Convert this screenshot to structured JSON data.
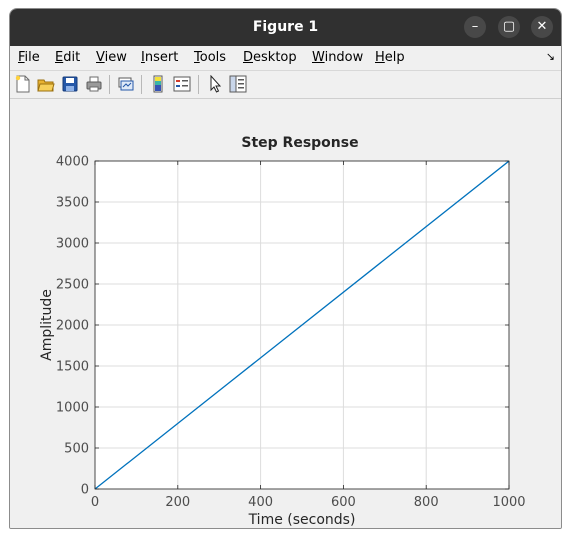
{
  "window": {
    "title": "Figure 1",
    "minimize_glyph": "–",
    "maximize_glyph": "▢",
    "close_glyph": "✕"
  },
  "menu": {
    "items": [
      {
        "label": "File",
        "mnemonic": "F",
        "rest": "ile"
      },
      {
        "label": "Edit",
        "mnemonic": "E",
        "rest": "dit"
      },
      {
        "label": "View",
        "mnemonic": "V",
        "rest": "iew"
      },
      {
        "label": "Insert",
        "mnemonic": "I",
        "rest": "nsert"
      },
      {
        "label": "Tools",
        "mnemonic": "T",
        "rest": "ools"
      },
      {
        "label": "Desktop",
        "mnemonic": "D",
        "rest": "esktop"
      },
      {
        "label": "Window",
        "mnemonic": "W",
        "rest": "indow"
      },
      {
        "label": "Help",
        "mnemonic": "H",
        "rest": "elp"
      }
    ],
    "dock_glyph": "↘"
  },
  "toolbar": {
    "icons": [
      "new-figure-icon",
      "open-file-icon",
      "save-icon",
      "print-icon",
      "link-plot-icon",
      "insert-colorbar-icon",
      "insert-legend-icon",
      "edit-plot-pointer-icon",
      "property-inspector-icon"
    ]
  },
  "chart_data": {
    "type": "line",
    "title": "Step Response",
    "xlabel": "Time (seconds)",
    "ylabel": "Amplitude",
    "xlim": [
      0,
      1000
    ],
    "ylim": [
      0,
      4000
    ],
    "xticks": [
      0,
      200,
      400,
      600,
      800,
      1000
    ],
    "yticks": [
      0,
      500,
      1000,
      1500,
      2000,
      2500,
      3000,
      3500,
      4000
    ],
    "grid": true,
    "series": [
      {
        "color": "#0072bd",
        "x": [
          0,
          1000
        ],
        "y": [
          0,
          4000
        ]
      }
    ]
  }
}
